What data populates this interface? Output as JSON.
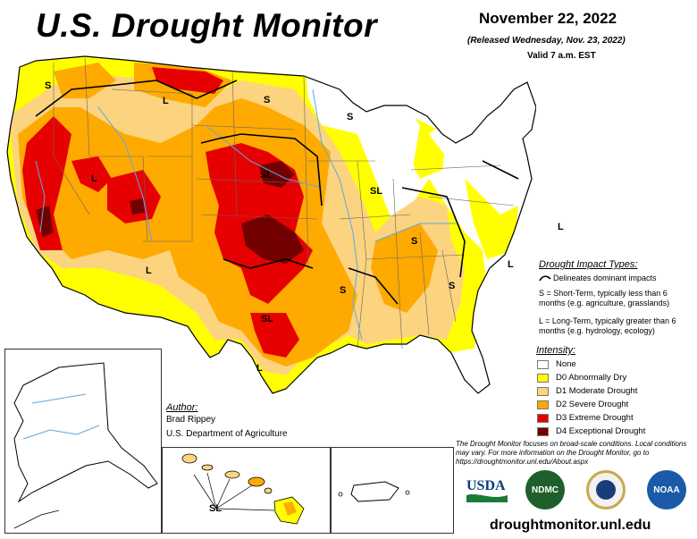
{
  "header": {
    "title": "U.S. Drought Monitor",
    "date": "November 22, 2022",
    "released": "(Released Wednesday, Nov. 23, 2022)",
    "valid": "Valid 7 a.m. EST"
  },
  "impact_legend": {
    "title": "Drought Impact Types:",
    "dominant": "Delineates dominant impacts",
    "short_term": "S = Short-Term, typically less than 6 months (e.g. agriculture, grasslands)",
    "long_term": "L = Long-Term, typically greater than 6 months (e.g. hydrology, ecology)"
  },
  "intensity": {
    "title": "Intensity:",
    "items": [
      {
        "label": "None",
        "color": "#ffffff"
      },
      {
        "label": "D0 Abnormally Dry",
        "color": "#ffff00"
      },
      {
        "label": "D1 Moderate Drought",
        "color": "#fcd37f"
      },
      {
        "label": "D2 Severe Drought",
        "color": "#ffaa00"
      },
      {
        "label": "D3 Extreme Drought",
        "color": "#e60000"
      },
      {
        "label": "D4 Exceptional Drought",
        "color": "#730000"
      }
    ]
  },
  "author": {
    "label": "Author:",
    "name": "Brad Rippey",
    "org": "U.S. Department of Agriculture"
  },
  "disclaimer": "The Drought Monitor focuses on broad-scale conditions. Local conditions may vary. For more information on the Drought Monitor, go to https://droughtmonitor.unl.edu/About.aspx",
  "url": "droughtmonitor.unl.edu",
  "logos": {
    "usda": "USDA",
    "ndmc": "NDMC",
    "noaa": "NOAA"
  },
  "map_labels": {
    "S": "S",
    "L": "L",
    "SL": "SL"
  },
  "colors": {
    "water": "#5aa9e6",
    "border": "#000000",
    "state_line": "#888888"
  }
}
